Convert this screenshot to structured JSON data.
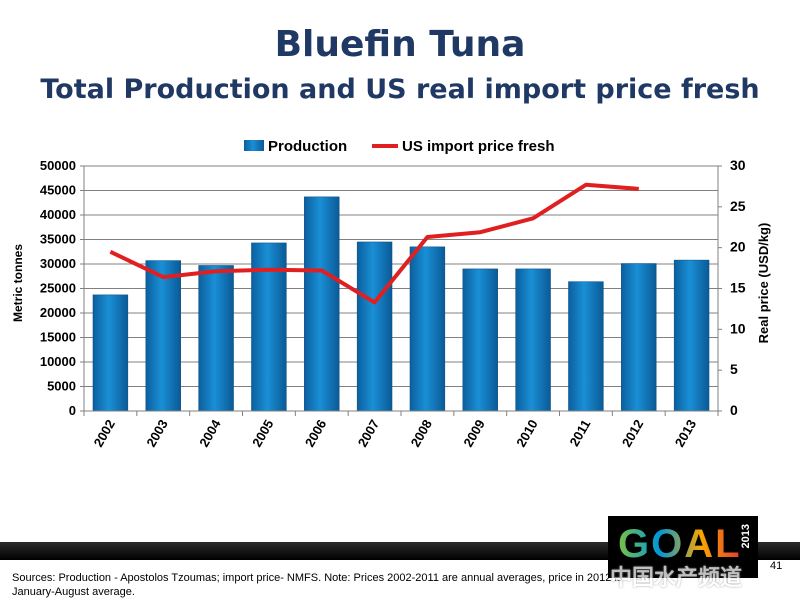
{
  "slide": {
    "title": "Bluefin Tuna",
    "subtitle": "Total Production and US real import price fresh",
    "sources": "Sources: Production - Apostolos Tzoumas; import price- NMFS. Note: Prices 2002-2011  are annual averages, price in 2012 is January-August average.",
    "page_number": "41",
    "logo_text": "GOAL",
    "logo_year": "2013",
    "watermark": "中国水产频道"
  },
  "colors": {
    "title": "#1f3864",
    "bar": "#1a8fd6",
    "line": "#e02020"
  },
  "chart_data": {
    "type": "bar",
    "categories": [
      "2002",
      "2003",
      "2004",
      "2005",
      "2006",
      "2007",
      "2008",
      "2009",
      "2010",
      "2011",
      "2012",
      "2013"
    ],
    "series": [
      {
        "name": "Production",
        "type": "bar",
        "axis": "left",
        "values": [
          23700,
          30700,
          29700,
          34300,
          43700,
          34500,
          33500,
          29000,
          29000,
          26400,
          30100,
          30800
        ]
      },
      {
        "name": "US import price fresh",
        "type": "line",
        "axis": "right",
        "values": [
          19.5,
          16.4,
          17.1,
          17.3,
          17.2,
          13.3,
          21.3,
          21.9,
          23.6,
          27.7,
          27.2,
          null
        ]
      }
    ],
    "ylabel": "Metric tonnes",
    "y2label": "Real price (USD/kg)",
    "ylim": [
      0,
      50000
    ],
    "yticks": [
      0,
      5000,
      10000,
      15000,
      20000,
      25000,
      30000,
      35000,
      40000,
      45000,
      50000
    ],
    "y2lim": [
      0,
      30
    ],
    "y2ticks": [
      0,
      5,
      10,
      15,
      20,
      25,
      30
    ],
    "grid": true,
    "legend": "top-center"
  }
}
